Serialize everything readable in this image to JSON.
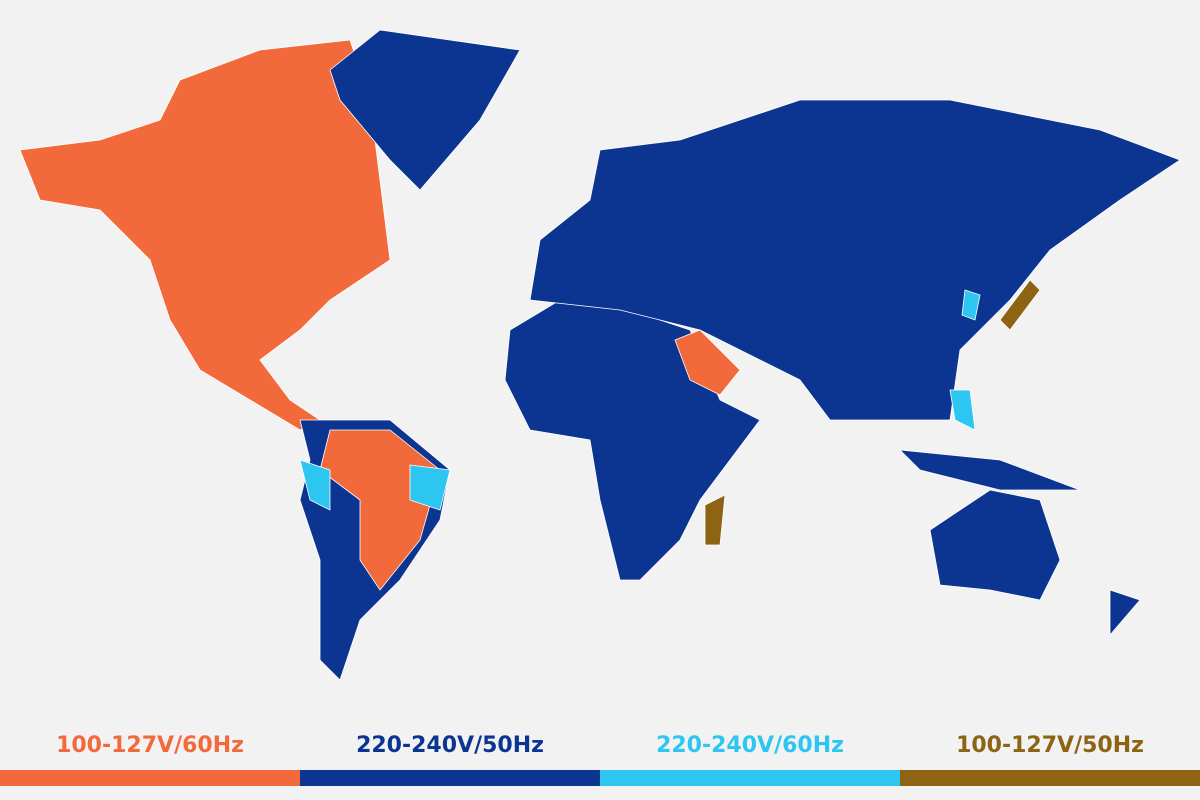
{
  "legend": [
    {
      "label": "100-127V/60Hz",
      "color": "#f26a3c"
    },
    {
      "label": "220-240V/50Hz",
      "color": "#0c3591"
    },
    {
      "label": "220-240V/60Hz",
      "color": "#2cc6f0"
    },
    {
      "label": "100-127V/50Hz",
      "color": "#8c6414"
    }
  ]
}
